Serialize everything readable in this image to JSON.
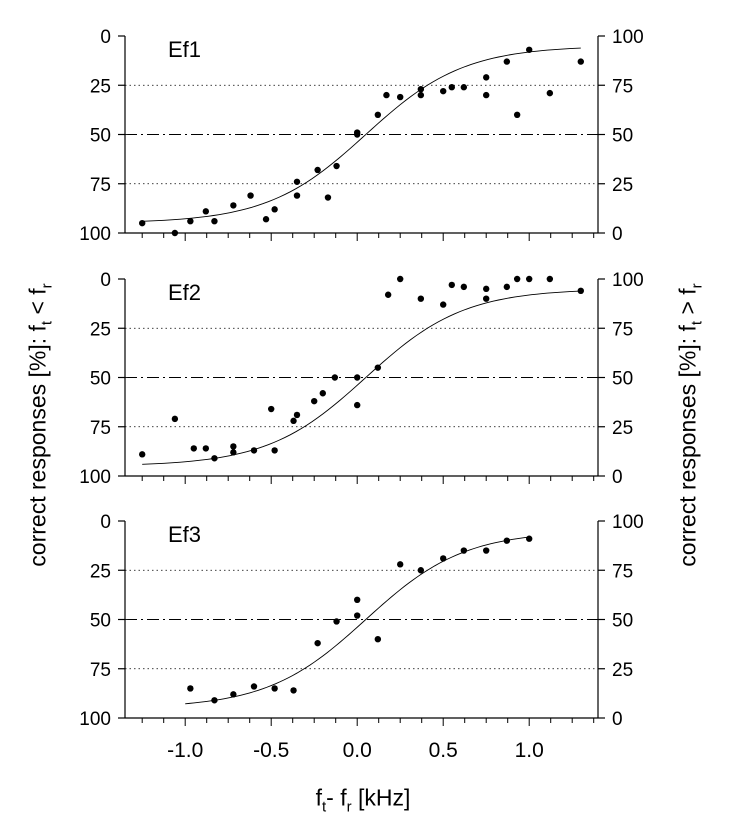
{
  "labels": {
    "y_left": {
      "pre": "correct responses [%]: f",
      "s1": "t",
      "mid": " < f",
      "s2": "r"
    },
    "y_right": {
      "pre": "correct responses [%]: f",
      "s1": "t",
      "mid": " > f",
      "s2": "r"
    },
    "x": {
      "a": "f",
      "s1": "t",
      "b": "- f",
      "s2": "r",
      "c": " [kHz]"
    }
  },
  "chart_data": [
    {
      "type": "scatter",
      "title": "Ef1",
      "xlim": [
        -1.35,
        1.4
      ],
      "ylim_left": [
        100,
        0
      ],
      "ylim_right": [
        0,
        100
      ],
      "left_ticks": [
        "0",
        "25",
        "50",
        "75",
        "100"
      ],
      "right_ticks": [
        "100",
        "75",
        "50",
        "25",
        "0"
      ],
      "gridlines": [
        25,
        75
      ],
      "chance_line": 50,
      "x": [
        -1.25,
        -1.06,
        -0.97,
        -0.88,
        -0.83,
        -0.72,
        -0.62,
        -0.53,
        -0.48,
        -0.35,
        -0.35,
        -0.23,
        -0.17,
        -0.12,
        0.0,
        0.0,
        0.12,
        0.17,
        0.25,
        0.37,
        0.37,
        0.5,
        0.55,
        0.62,
        0.75,
        0.75,
        0.87,
        0.93,
        1.0,
        1.12,
        1.3
      ],
      "y": [
        95,
        100,
        94,
        89,
        94,
        86,
        81,
        93,
        88,
        81,
        74,
        68,
        82,
        66,
        49,
        50,
        40,
        30,
        31,
        30,
        27,
        28,
        26,
        26,
        21,
        30,
        13,
        40,
        7,
        29,
        13
      ],
      "fit": {
        "x_start": -1.25,
        "x_end": 1.3
      }
    },
    {
      "type": "scatter",
      "title": "Ef2",
      "xlim": [
        -1.35,
        1.4
      ],
      "ylim_left": [
        100,
        0
      ],
      "ylim_right": [
        0,
        100
      ],
      "left_ticks": [
        "0",
        "25",
        "50",
        "75",
        "100"
      ],
      "right_ticks": [
        "100",
        "75",
        "50",
        "25",
        "0"
      ],
      "gridlines": [
        25,
        75
      ],
      "chance_line": 50,
      "x": [
        -1.25,
        -1.06,
        -0.95,
        -0.88,
        -0.83,
        -0.72,
        -0.72,
        -0.6,
        -0.5,
        -0.48,
        -0.37,
        -0.35,
        -0.25,
        -0.2,
        -0.13,
        0.0,
        0.0,
        0.12,
        0.18,
        0.25,
        0.37,
        0.5,
        0.55,
        0.62,
        0.75,
        0.75,
        0.87,
        0.93,
        1.0,
        1.12,
        1.3
      ],
      "y": [
        89,
        71,
        86,
        86,
        91,
        85,
        88,
        87,
        66,
        87,
        72,
        69,
        62,
        58,
        50,
        64,
        50,
        45,
        8,
        0,
        10,
        13,
        3,
        4,
        5,
        10,
        4,
        0,
        0,
        0,
        6
      ],
      "fit": {
        "x_start": -1.25,
        "x_end": 1.3
      }
    },
    {
      "type": "scatter",
      "title": "Ef3",
      "xlim": [
        -1.35,
        1.4
      ],
      "ylim_left": [
        100,
        0
      ],
      "ylim_right": [
        0,
        100
      ],
      "left_ticks": [
        "0",
        "25",
        "50",
        "75",
        "100"
      ],
      "right_ticks": [
        "100",
        "75",
        "50",
        "25",
        "0"
      ],
      "gridlines": [
        25,
        75
      ],
      "chance_line": 50,
      "x": [
        -0.97,
        -0.83,
        -0.72,
        -0.6,
        -0.48,
        -0.37,
        -0.23,
        -0.12,
        0.0,
        0.0,
        0.12,
        0.25,
        0.37,
        0.5,
        0.62,
        0.75,
        0.87,
        1.0
      ],
      "y": [
        85,
        91,
        88,
        84,
        85,
        86,
        62,
        51,
        40,
        48,
        60,
        22,
        25,
        19,
        15,
        15,
        10,
        9
      ],
      "fit": {
        "x_start": -1.0,
        "x_end": 1.0
      }
    }
  ],
  "x_axis": {
    "ticks": [
      -1.0,
      -0.5,
      0.0,
      0.5,
      1.0
    ],
    "tick_labels": [
      "-1.0",
      "-0.5",
      "0.0",
      "0.5",
      "1.0"
    ],
    "minor_step": 0.125
  }
}
